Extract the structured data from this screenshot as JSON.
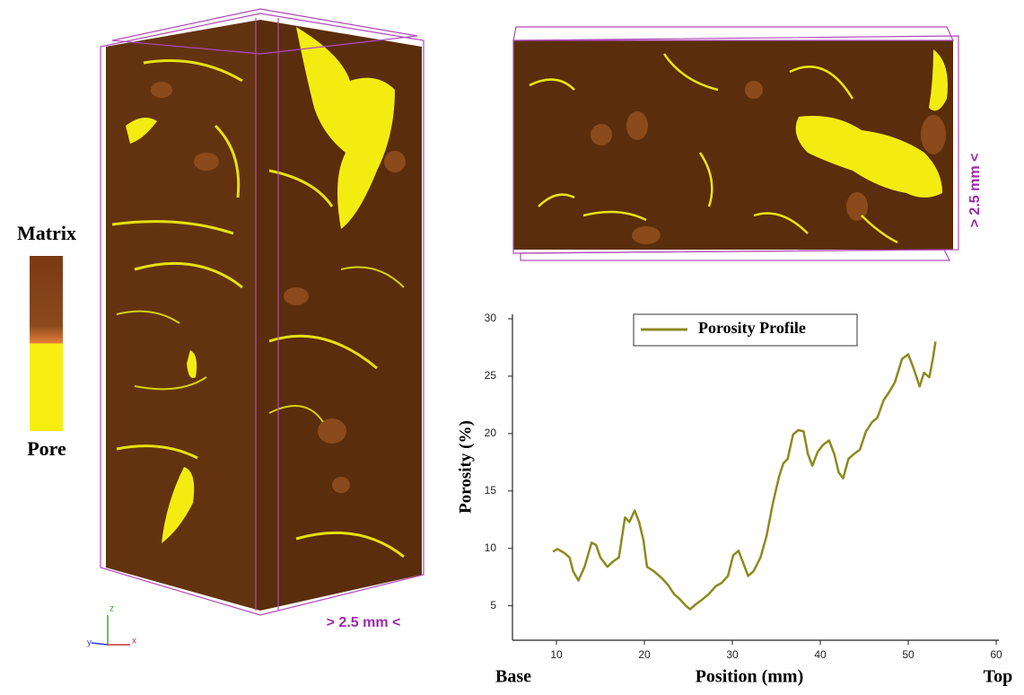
{
  "colorbar": {
    "top_label": "Matrix",
    "bottom_label": "Pore"
  },
  "scale_labels": [
    "> 2.5 mm <",
    "> 2.5 mm <"
  ],
  "axis_triad": [
    "z",
    "y",
    "x"
  ],
  "chart_data": {
    "type": "line",
    "xlabel": "Position (mm)",
    "ylabel": "Porosity (%)",
    "x_end_labels": [
      "Base",
      "Top"
    ],
    "xlim": [
      5,
      60
    ],
    "ylim": [
      2,
      30
    ],
    "xticks": [
      10,
      20,
      30,
      40,
      50,
      60
    ],
    "yticks": [
      5,
      10,
      15,
      20,
      25,
      30
    ],
    "legend_position": "top",
    "series": [
      {
        "name": "Porosity Profile",
        "color": "#8c8a1e",
        "x": [
          9.6,
          10.1,
          10.9,
          11.5,
          11.9,
          12.5,
          13.2,
          14.0,
          14.5,
          15.0,
          15.8,
          16.5,
          17.1,
          17.8,
          18.3,
          18.9,
          19.4,
          19.9,
          20.3,
          21.1,
          22.0,
          22.7,
          23.4,
          24.0,
          24.7,
          25.2,
          25.8,
          26.5,
          27.3,
          28.1,
          28.8,
          29.5,
          30.1,
          30.7,
          31.2,
          31.8,
          32.4,
          33.2,
          33.9,
          34.6,
          35.3,
          35.8,
          36.3,
          36.9,
          37.5,
          38.1,
          38.6,
          39.1,
          39.7,
          40.3,
          41.0,
          41.6,
          42.1,
          42.6,
          43.2,
          43.8,
          44.5,
          45.2,
          45.9,
          46.5,
          47.2,
          47.9,
          48.5,
          49.3,
          50.0,
          50.6,
          51.3,
          51.8,
          52.4,
          52.8,
          53.1
        ],
        "values": [
          9.7,
          9.95,
          9.6,
          9.2,
          8.0,
          7.2,
          8.4,
          10.5,
          10.3,
          9.2,
          8.4,
          8.9,
          9.2,
          12.7,
          12.3,
          13.3,
          12.3,
          10.7,
          8.4,
          8.0,
          7.4,
          6.8,
          6.0,
          5.6,
          5.0,
          4.7,
          5.1,
          5.5,
          6.0,
          6.7,
          7.0,
          7.6,
          9.4,
          9.8,
          8.8,
          7.6,
          8.0,
          9.2,
          11.1,
          13.9,
          16.2,
          17.4,
          17.8,
          19.9,
          20.3,
          20.2,
          18.2,
          17.2,
          18.4,
          19.0,
          19.4,
          18.2,
          16.6,
          16.1,
          17.8,
          18.2,
          18.6,
          20.2,
          21.0,
          21.4,
          22.9,
          23.7,
          24.5,
          26.5,
          26.9,
          25.7,
          24.1,
          25.3,
          24.9,
          26.5,
          28.0
        ]
      }
    ]
  }
}
